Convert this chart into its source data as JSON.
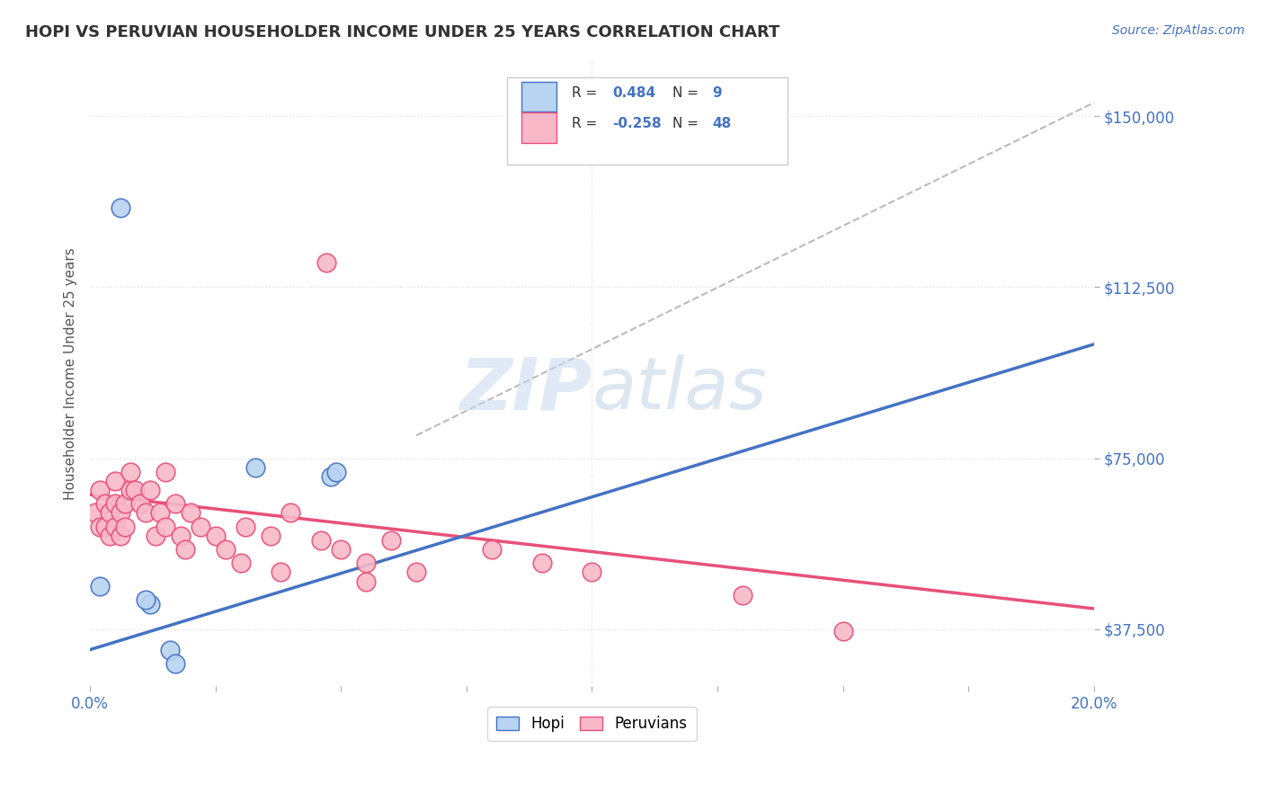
{
  "title": "HOPI VS PERUVIAN HOUSEHOLDER INCOME UNDER 25 YEARS CORRELATION CHART",
  "source": "Source: ZipAtlas.com",
  "ylabel": "Householder Income Under 25 years",
  "xlim": [
    0.0,
    0.2
  ],
  "ylim": [
    25000,
    162000
  ],
  "yticks": [
    37500,
    75000,
    112500,
    150000
  ],
  "ytick_labels": [
    "$37,500",
    "$75,000",
    "$112,500",
    "$150,000"
  ],
  "xticks": [
    0.0,
    0.025,
    0.05,
    0.075,
    0.1,
    0.125,
    0.15,
    0.175,
    0.2
  ],
  "xtick_labels": [
    "0.0%",
    "",
    "",
    "",
    "",
    "",
    "",
    "",
    "20.0%"
  ],
  "hopi_R": 0.484,
  "hopi_N": 9,
  "peruvian_R": -0.258,
  "peruvian_N": 48,
  "hopi_color": "#b8d4f0",
  "peruvian_color": "#f8b8c8",
  "hopi_line_color": "#4472c4",
  "peruvian_line_color": "#e8507a",
  "trend_line_color": "#bbbbbb",
  "background_color": "#ffffff",
  "grid_color": "#e0e0e0",
  "axis_color": "#4472c4",
  "hopi_points": [
    [
      0.002,
      47000
    ],
    [
      0.012,
      43000
    ],
    [
      0.016,
      33000
    ],
    [
      0.017,
      30000
    ],
    [
      0.006,
      130000
    ],
    [
      0.033,
      73000
    ],
    [
      0.048,
      71000
    ],
    [
      0.049,
      72000
    ],
    [
      0.011,
      44000
    ]
  ],
  "peruvian_points": [
    [
      0.001,
      63000
    ],
    [
      0.002,
      68000
    ],
    [
      0.002,
      60000
    ],
    [
      0.003,
      60000
    ],
    [
      0.003,
      65000
    ],
    [
      0.004,
      58000
    ],
    [
      0.004,
      63000
    ],
    [
      0.005,
      65000
    ],
    [
      0.005,
      60000
    ],
    [
      0.005,
      70000
    ],
    [
      0.006,
      63000
    ],
    [
      0.006,
      58000
    ],
    [
      0.007,
      65000
    ],
    [
      0.007,
      60000
    ],
    [
      0.008,
      68000
    ],
    [
      0.008,
      72000
    ],
    [
      0.009,
      68000
    ],
    [
      0.01,
      65000
    ],
    [
      0.011,
      63000
    ],
    [
      0.012,
      68000
    ],
    [
      0.013,
      58000
    ],
    [
      0.014,
      63000
    ],
    [
      0.015,
      72000
    ],
    [
      0.015,
      60000
    ],
    [
      0.017,
      65000
    ],
    [
      0.018,
      58000
    ],
    [
      0.019,
      55000
    ],
    [
      0.02,
      63000
    ],
    [
      0.022,
      60000
    ],
    [
      0.025,
      58000
    ],
    [
      0.027,
      55000
    ],
    [
      0.03,
      52000
    ],
    [
      0.031,
      60000
    ],
    [
      0.036,
      58000
    ],
    [
      0.038,
      50000
    ],
    [
      0.04,
      63000
    ],
    [
      0.046,
      57000
    ],
    [
      0.05,
      55000
    ],
    [
      0.055,
      52000
    ],
    [
      0.06,
      57000
    ],
    [
      0.065,
      50000
    ],
    [
      0.08,
      55000
    ],
    [
      0.09,
      52000
    ],
    [
      0.1,
      50000
    ],
    [
      0.13,
      45000
    ],
    [
      0.15,
      37000
    ],
    [
      0.047,
      118000
    ],
    [
      0.055,
      48000
    ]
  ],
  "hopi_line_x": [
    0.0,
    0.2
  ],
  "hopi_line_y": [
    33000,
    100000
  ],
  "peruvian_line_x": [
    0.0,
    0.2
  ],
  "peruvian_line_y": [
    67000,
    42000
  ],
  "dashed_line_x": [
    0.065,
    0.2
  ],
  "dashed_line_y": [
    80000,
    153000
  ]
}
